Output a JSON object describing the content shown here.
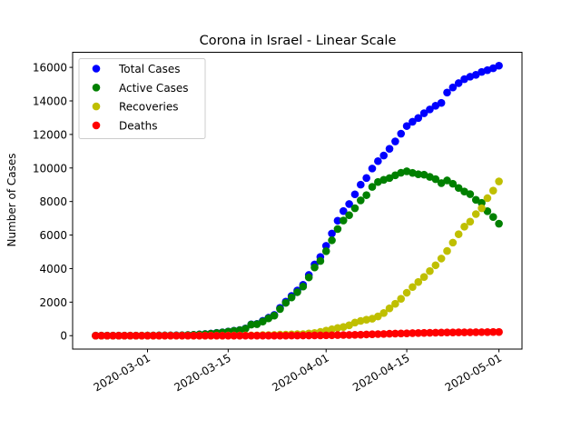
{
  "chart_data": {
    "type": "scatter",
    "title": "Corona in Israel - Linear Scale",
    "y_label": "Number of Cases",
    "x": [
      "2020-02-21",
      "2020-02-22",
      "2020-02-23",
      "2020-02-24",
      "2020-02-25",
      "2020-02-26",
      "2020-02-27",
      "2020-02-28",
      "2020-02-29",
      "2020-03-01",
      "2020-03-02",
      "2020-03-03",
      "2020-03-04",
      "2020-03-05",
      "2020-03-06",
      "2020-03-07",
      "2020-03-08",
      "2020-03-09",
      "2020-03-10",
      "2020-03-11",
      "2020-03-12",
      "2020-03-13",
      "2020-03-14",
      "2020-03-15",
      "2020-03-16",
      "2020-03-17",
      "2020-03-18",
      "2020-03-19",
      "2020-03-20",
      "2020-03-21",
      "2020-03-22",
      "2020-03-23",
      "2020-03-24",
      "2020-03-25",
      "2020-03-26",
      "2020-03-27",
      "2020-03-28",
      "2020-03-29",
      "2020-03-30",
      "2020-03-31",
      "2020-04-01",
      "2020-04-02",
      "2020-04-03",
      "2020-04-04",
      "2020-04-05",
      "2020-04-06",
      "2020-04-07",
      "2020-04-08",
      "2020-04-09",
      "2020-04-10",
      "2020-04-11",
      "2020-04-12",
      "2020-04-13",
      "2020-04-14",
      "2020-04-15",
      "2020-04-16",
      "2020-04-17",
      "2020-04-18",
      "2020-04-19",
      "2020-04-20",
      "2020-04-21",
      "2020-04-22",
      "2020-04-23",
      "2020-04-24",
      "2020-04-25",
      "2020-04-26",
      "2020-04-27",
      "2020-04-28",
      "2020-04-29",
      "2020-04-30",
      "2020-05-01"
    ],
    "series": [
      {
        "name": "Total Cases",
        "color": "#0000ff",
        "values": [
          1,
          1,
          1,
          2,
          2,
          2,
          3,
          5,
          7,
          10,
          12,
          15,
          15,
          17,
          21,
          25,
          39,
          50,
          75,
          97,
          126,
          164,
          200,
          250,
          298,
          337,
          433,
          677,
          705,
          883,
          1071,
          1238,
          1656,
          2030,
          2369,
          2693,
          3035,
          3619,
          4247,
          4695,
          5358,
          6092,
          6857,
          7428,
          7851,
          8430,
          9006,
          9404,
          9968,
          10408,
          10743,
          11145,
          11586,
          12046,
          12501,
          12758,
          12982,
          13265,
          13491,
          13713,
          13883,
          14498,
          14803,
          15058,
          15298,
          15443,
          15555,
          15728,
          15834,
          15946,
          16101
        ]
      },
      {
        "name": "Active Cases",
        "color": "#008000",
        "values": [
          1,
          1,
          1,
          2,
          2,
          2,
          3,
          5,
          6,
          9,
          11,
          14,
          14,
          15,
          19,
          23,
          37,
          48,
          73,
          93,
          122,
          160,
          196,
          239,
          287,
          326,
          419,
          662,
          689,
          845,
          1033,
          1196,
          1589,
          1957,
          2282,
          2594,
          2928,
          3475,
          4071,
          4455,
          5038,
          5686,
          6361,
          6868,
          7187,
          7601,
          8069,
          8381,
          8872,
          9163,
          9292,
          9399,
          9563,
          9716,
          9801,
          9707,
          9624,
          9601,
          9469,
          9336,
          9099,
          9257,
          9060,
          8809,
          8597,
          8441,
          8100,
          7918,
          7422,
          7077,
          6679
        ]
      },
      {
        "name": "Recoveries",
        "color": "#bfbf00",
        "values": [
          0,
          0,
          0,
          0,
          0,
          0,
          0,
          0,
          1,
          1,
          1,
          1,
          1,
          2,
          2,
          2,
          2,
          2,
          2,
          4,
          4,
          4,
          4,
          11,
          11,
          11,
          14,
          15,
          15,
          37,
          37,
          41,
          64,
          68,
          79,
          89,
          95,
          132,
          161,
          224,
          300,
          380,
          460,
          520,
          620,
          780,
          880,
          950,
          1010,
          1150,
          1350,
          1630,
          1900,
          2200,
          2560,
          2900,
          3200,
          3500,
          3850,
          4200,
          4600,
          5050,
          5550,
          6050,
          6500,
          6800,
          7250,
          7600,
          8200,
          8650,
          9200
        ]
      },
      {
        "name": "Deaths",
        "color": "#ff0000",
        "values": [
          0,
          0,
          0,
          0,
          0,
          0,
          0,
          0,
          0,
          0,
          0,
          0,
          0,
          0,
          0,
          0,
          0,
          0,
          0,
          0,
          0,
          0,
          0,
          0,
          0,
          0,
          0,
          0,
          1,
          1,
          1,
          1,
          3,
          5,
          8,
          10,
          12,
          12,
          15,
          16,
          20,
          26,
          36,
          40,
          44,
          49,
          57,
          73,
          86,
          95,
          101,
          116,
          123,
          130,
          140,
          151,
          158,
          164,
          172,
          177,
          184,
          191,
          193,
          199,
          201,
          202,
          205,
          210,
          212,
          219,
          222
        ]
      }
    ],
    "xlim": [
      "2020-02-17",
      "2020-05-05"
    ],
    "xticks": [
      "2020-03-01",
      "2020-03-15",
      "2020-04-01",
      "2020-04-15",
      "2020-05-01"
    ],
    "ylim": [
      -800,
      16900
    ],
    "yticks": [
      0,
      2000,
      4000,
      6000,
      8000,
      10000,
      12000,
      14000,
      16000
    ],
    "legend": "upper left"
  }
}
